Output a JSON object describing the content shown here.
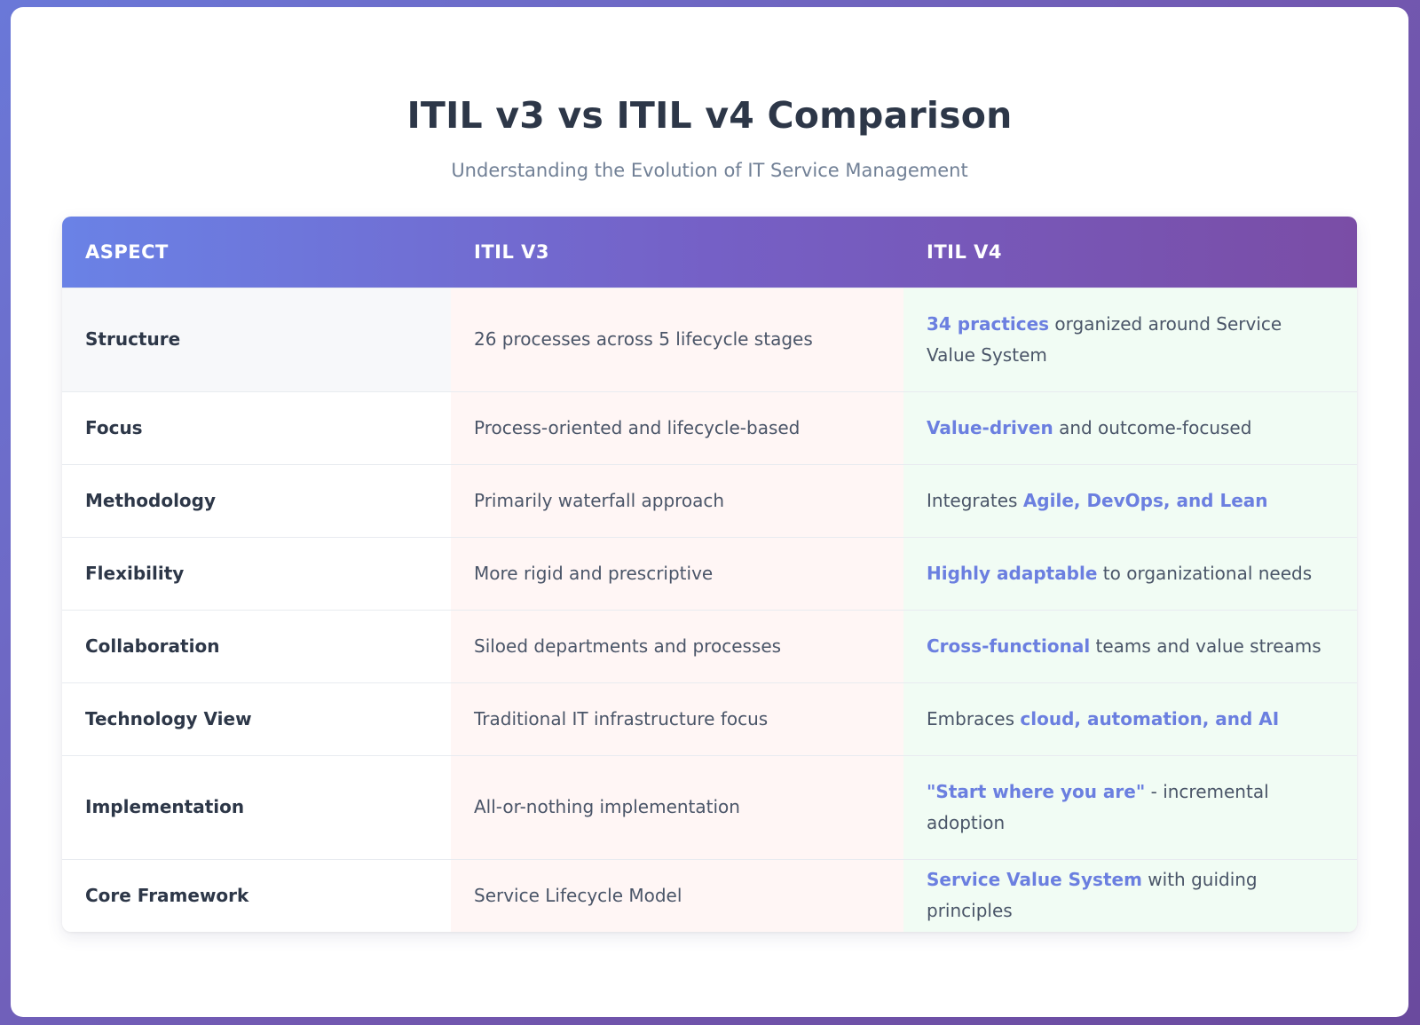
{
  "page": {
    "title": "ITIL v3 vs ITIL v4 Comparison",
    "subtitle": "Understanding the Evolution of IT Service Management"
  },
  "table": {
    "headers": [
      "ASPECT",
      "ITIL V3",
      "ITIL V4"
    ],
    "rows": [
      {
        "aspect": "Structure",
        "v3": "26 processes across 5 lifecycle stages",
        "v4": {
          "pre": "",
          "highlight": "34 practices",
          "post": " organized around Service Value System"
        }
      },
      {
        "aspect": "Focus",
        "v3": "Process-oriented and lifecycle-based",
        "v4": {
          "pre": "",
          "highlight": "Value-driven",
          "post": " and outcome-focused"
        }
      },
      {
        "aspect": "Methodology",
        "v3": "Primarily waterfall approach",
        "v4": {
          "pre": "Integrates ",
          "highlight": "Agile, DevOps, and Lean",
          "post": ""
        }
      },
      {
        "aspect": "Flexibility",
        "v3": "More rigid and prescriptive",
        "v4": {
          "pre": "",
          "highlight": "Highly adaptable",
          "post": " to organizational needs"
        }
      },
      {
        "aspect": "Collaboration",
        "v3": "Siloed departments and processes",
        "v4": {
          "pre": "",
          "highlight": "Cross-functional",
          "post": " teams and value streams"
        }
      },
      {
        "aspect": "Technology View",
        "v3": "Traditional IT infrastructure focus",
        "v4": {
          "pre": "Embraces ",
          "highlight": "cloud, automation, and AI",
          "post": ""
        }
      },
      {
        "aspect": "Implementation",
        "v3": "All-or-nothing implementation",
        "v4": {
          "pre": "",
          "highlight": "\"Start where you are\"",
          "post": " - incremental adoption"
        }
      },
      {
        "aspect": "Core Framework",
        "v3": "Service Lifecycle Model",
        "v4": {
          "pre": "",
          "highlight": "Service Value System",
          "post": " with guiding principles"
        }
      }
    ]
  },
  "colors": {
    "accent": "#6b7fe0",
    "header_gradient": [
      "#6a82e6",
      "#7a4da6"
    ],
    "v3_bg": "#fff6f5",
    "v4_bg": "#f1fcf4"
  }
}
